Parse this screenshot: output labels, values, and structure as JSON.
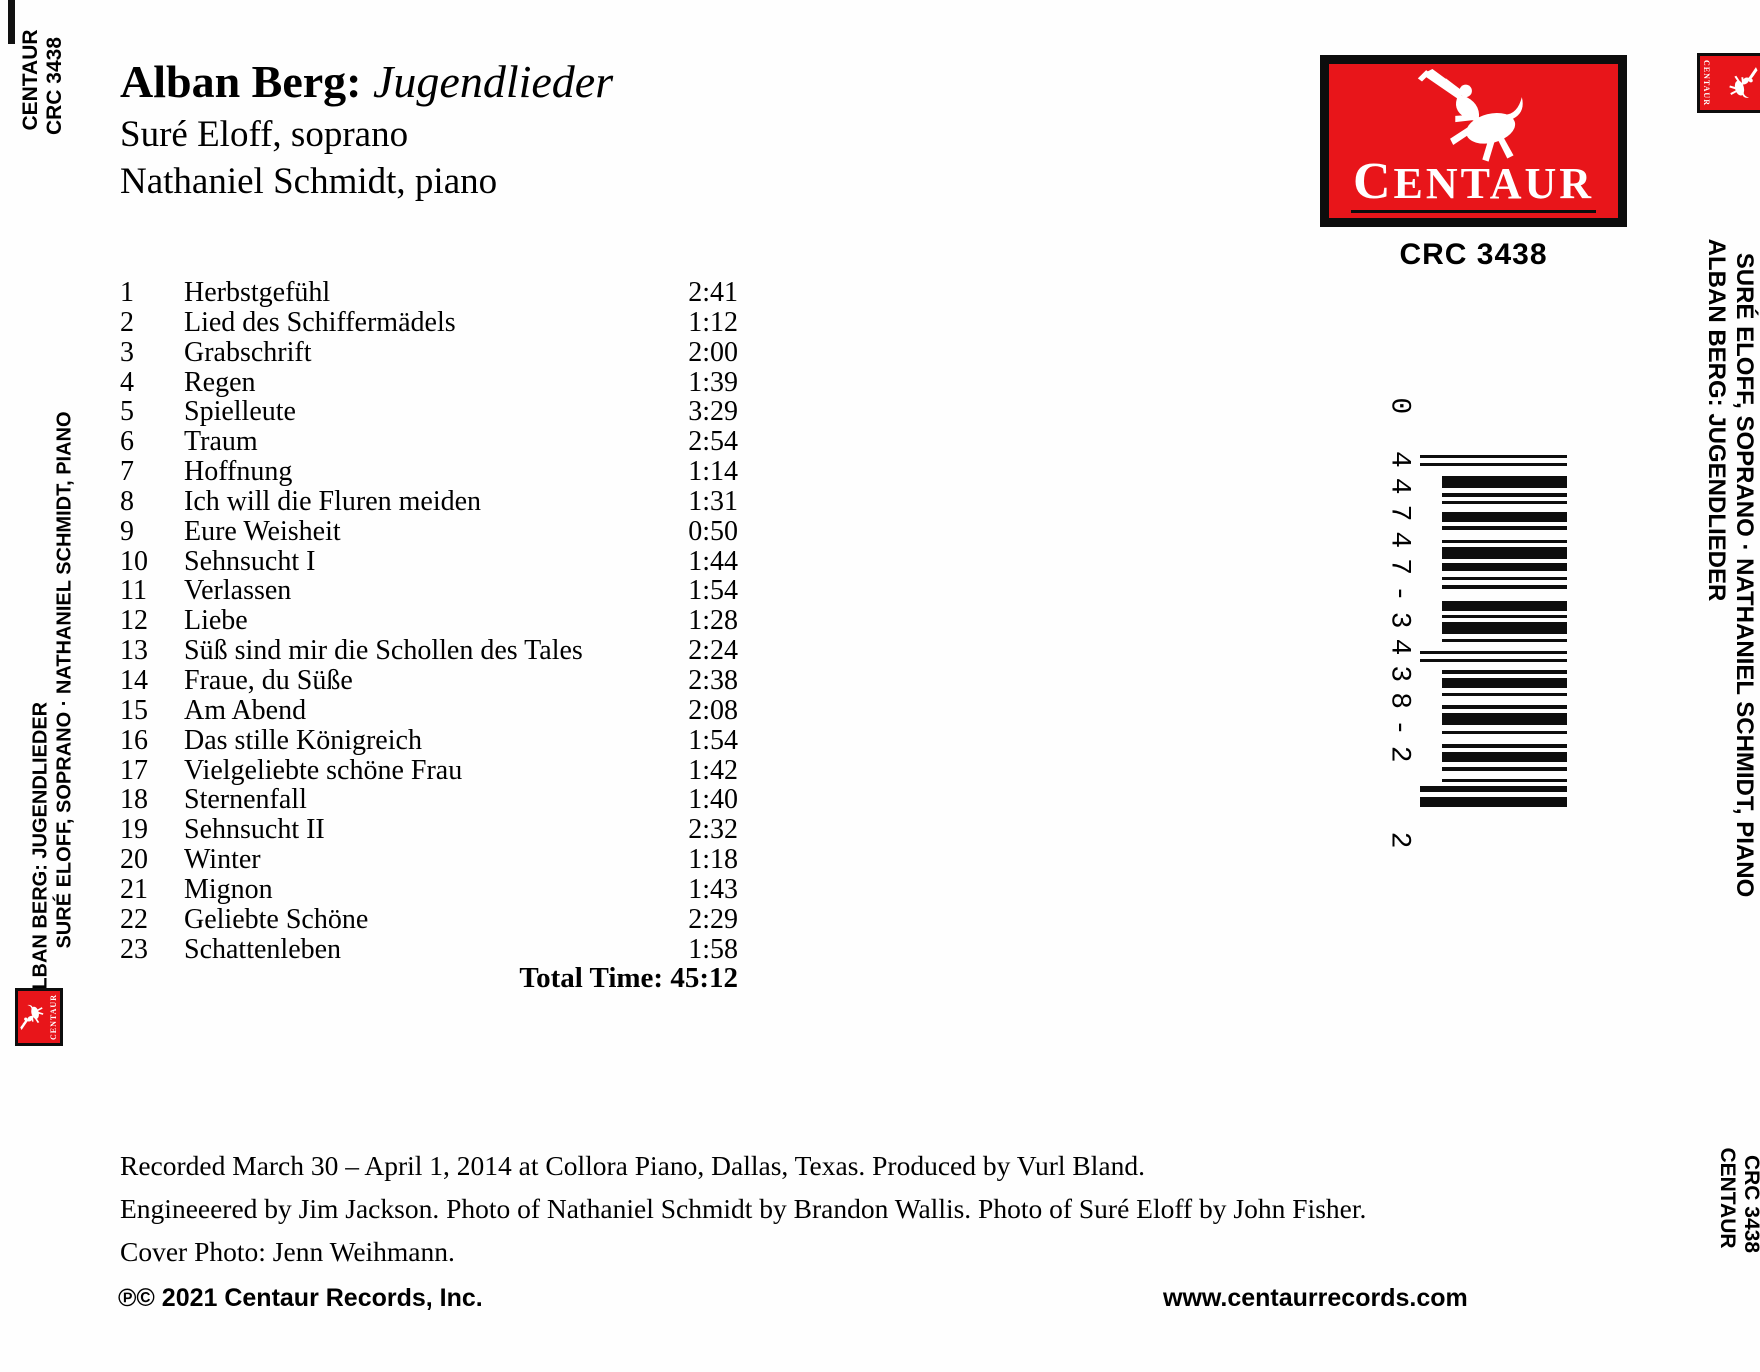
{
  "header": {
    "artist": "Alban Berg:",
    "title": "Jugendlieder",
    "performer1": "Suré Eloff, soprano",
    "performer2": "Nathaniel Schmidt, piano"
  },
  "logo": {
    "brand_first": "C",
    "brand_rest": "ENTAUR",
    "brand": "CENTAUR",
    "catalog": "CRC 3438",
    "red": "#e8151a"
  },
  "tracks": [
    {
      "n": "1",
      "title": "Herbstgefühl",
      "time": "2:41"
    },
    {
      "n": "2",
      "title": "Lied des Schiffermädels",
      "time": "1:12"
    },
    {
      "n": "3",
      "title": "Grabschrift",
      "time": "2:00"
    },
    {
      "n": "4",
      "title": "Regen",
      "time": "1:39"
    },
    {
      "n": "5",
      "title": "Spielleute",
      "time": "3:29"
    },
    {
      "n": "6",
      "title": "Traum",
      "time": "2:54"
    },
    {
      "n": "7",
      "title": "Hoffnung",
      "time": "1:14"
    },
    {
      "n": "8",
      "title": "Ich will die Fluren meiden",
      "time": "1:31"
    },
    {
      "n": "9",
      "title": "Eure Weisheit",
      "time": "0:50"
    },
    {
      "n": "10",
      "title": "Sehnsucht I",
      "time": "1:44"
    },
    {
      "n": "11",
      "title": "Verlassen",
      "time": "1:54"
    },
    {
      "n": "12",
      "title": "Liebe",
      "time": "1:28"
    },
    {
      "n": "13",
      "title": "Süß sind mir die Schollen des Tales",
      "time": "2:24"
    },
    {
      "n": "14",
      "title": "Fraue, du Süße",
      "time": "2:38"
    },
    {
      "n": "15",
      "title": "Am Abend",
      "time": "2:08"
    },
    {
      "n": "16",
      "title": "Das stille Königreich",
      "time": "1:54"
    },
    {
      "n": "17",
      "title": "Vielgeliebte schöne Frau",
      "time": "1:42"
    },
    {
      "n": "18",
      "title": "Sternenfall",
      "time": "1:40"
    },
    {
      "n": "19",
      "title": "Sehnsucht II",
      "time": "2:32"
    },
    {
      "n": "20",
      "title": "Winter",
      "time": "1:18"
    },
    {
      "n": "21",
      "title": "Mignon",
      "time": "1:43"
    },
    {
      "n": "22",
      "title": "Geliebte Schöne",
      "time": "2:29"
    },
    {
      "n": "23",
      "title": "Schattenleben",
      "time": "1:58"
    }
  ],
  "totals": {
    "label": "Total Time:",
    "value": "45:12"
  },
  "credits": {
    "line1": "Recorded March 30 – April 1, 2014 at Collora Piano, Dallas, Texas. Produced by Vurl Bland.",
    "line2": "Engineeered by Jim Jackson. Photo of Nathaniel Schmidt by Brandon Wallis. Photo of Suré Eloff by John Fisher.",
    "line3": "Cover Photo: Jenn Weihmann."
  },
  "footer": {
    "copyright": "℗© 2021 Centaur Records, Inc.",
    "website": "www.centaurrecords.com"
  },
  "spine_left": {
    "label": "CENTAUR",
    "catalog": "CRC 3438",
    "line_title": "ALBAN BERG: JUGENDLIEDER",
    "line_performers": "SURÉ ELOFF, SOPRANO · NATHANIEL SCHMIDT, PIANO"
  },
  "spine_right": {
    "label": "CENTAUR",
    "catalog": "CRC 3438",
    "line_title": "ALBAN BERG: JUGENDLIEDER",
    "line_performers": "SURÉ ELOFF, SOPRANO · NATHANIEL SCHMIDT, PIANO"
  },
  "barcode": {
    "number": "0 44747-3438-2",
    "suffix": "2"
  }
}
